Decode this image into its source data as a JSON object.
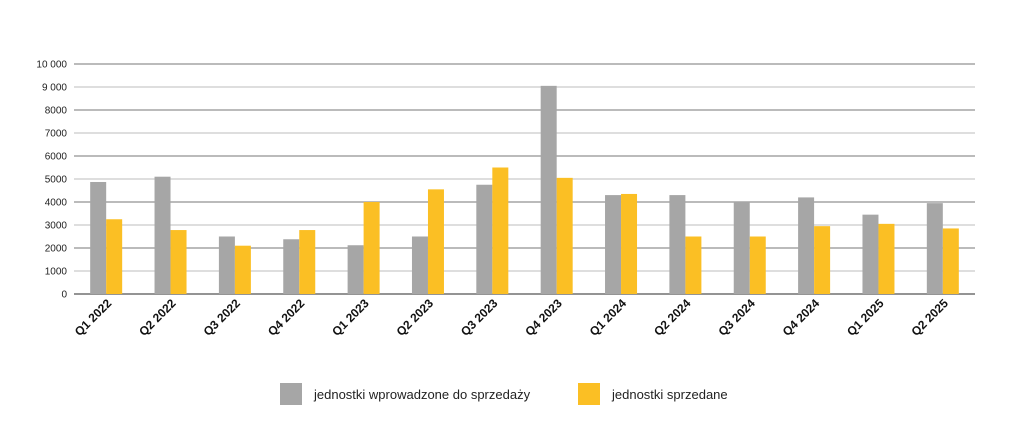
{
  "chart_data": {
    "type": "bar",
    "categories": [
      "Q1 2022",
      "Q2 2022",
      "Q3 2022",
      "Q4 2022",
      "Q1 2023",
      "Q2 2023",
      "Q3 2023",
      "Q4 2023",
      "Q1 2024",
      "Q2 2024",
      "Q3 2024",
      "Q4 2024",
      "Q1 2025",
      "Q2 2025"
    ],
    "series": [
      {
        "name": "jednostki wprowadzone do sprzedaży",
        "color": "#a6a6a6",
        "values": [
          4870,
          5100,
          2500,
          2380,
          2120,
          2500,
          4750,
          9050,
          4300,
          4300,
          4000,
          4200,
          3450,
          3950
        ]
      },
      {
        "name": "jednostki sprzedane",
        "color": "#fbbf24",
        "values": [
          3250,
          2780,
          2100,
          2780,
          4000,
          4550,
          5500,
          5050,
          4350,
          2500,
          2500,
          2950,
          3050,
          2850
        ]
      }
    ],
    "y_ticks": [
      "0",
      "1000",
      "2000",
      "3000",
      "4000",
      "5000",
      "6000",
      "7000",
      "8000",
      "9 000",
      "10 000"
    ],
    "ylim": [
      0,
      10000
    ],
    "title": "",
    "xlabel": "",
    "ylabel": "",
    "grid": true,
    "legend_position": "bottom"
  }
}
